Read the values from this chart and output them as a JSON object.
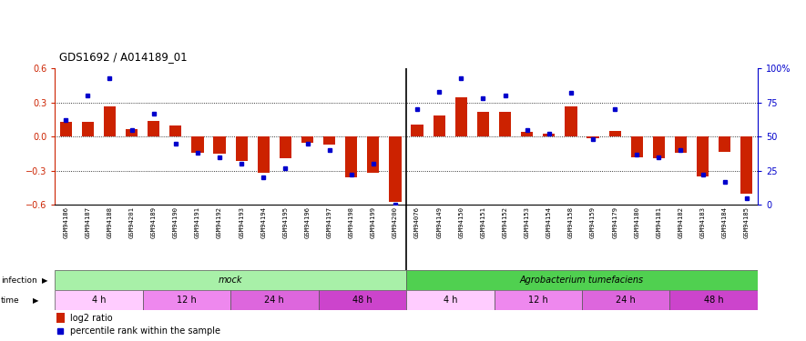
{
  "title": "GDS1692 / A014189_01",
  "samples": [
    "GSM94186",
    "GSM94187",
    "GSM94188",
    "GSM94201",
    "GSM94189",
    "GSM94190",
    "GSM94191",
    "GSM94192",
    "GSM94193",
    "GSM94194",
    "GSM94195",
    "GSM94196",
    "GSM94197",
    "GSM94198",
    "GSM94199",
    "GSM94200",
    "GSM94076",
    "GSM94149",
    "GSM94150",
    "GSM94151",
    "GSM94152",
    "GSM94153",
    "GSM94154",
    "GSM94158",
    "GSM94159",
    "GSM94179",
    "GSM94180",
    "GSM94181",
    "GSM94182",
    "GSM94183",
    "GSM94184",
    "GSM94185"
  ],
  "log2_ratio": [
    0.13,
    0.13,
    0.27,
    0.07,
    0.14,
    0.1,
    -0.14,
    -0.15,
    -0.21,
    -0.32,
    -0.19,
    -0.05,
    -0.07,
    -0.36,
    -0.32,
    -0.57,
    0.11,
    0.19,
    0.35,
    0.22,
    0.22,
    0.04,
    0.03,
    0.27,
    -0.01,
    0.05,
    -0.18,
    -0.19,
    -0.14,
    -0.35,
    -0.13,
    -0.5
  ],
  "percentile": [
    62,
    80,
    93,
    55,
    67,
    45,
    38,
    35,
    30,
    20,
    27,
    45,
    40,
    22,
    30,
    0,
    70,
    83,
    93,
    78,
    80,
    55,
    52,
    82,
    48,
    70,
    37,
    35,
    40,
    22,
    17,
    5
  ],
  "infection_groups": [
    {
      "label": "mock",
      "start": 0,
      "end": 16,
      "color": "#a8f0a8"
    },
    {
      "label": "Agrobacterium tumefaciens",
      "start": 16,
      "end": 32,
      "color": "#50d050"
    }
  ],
  "time_groups": [
    {
      "label": "4 h",
      "start": 0,
      "end": 4,
      "color": "#ffccff"
    },
    {
      "label": "12 h",
      "start": 4,
      "end": 8,
      "color": "#ee88ee"
    },
    {
      "label": "24 h",
      "start": 8,
      "end": 12,
      "color": "#dd66dd"
    },
    {
      "label": "48 h",
      "start": 12,
      "end": 16,
      "color": "#cc44cc"
    },
    {
      "label": "4 h",
      "start": 16,
      "end": 20,
      "color": "#ffccff"
    },
    {
      "label": "12 h",
      "start": 20,
      "end": 24,
      "color": "#ee88ee"
    },
    {
      "label": "24 h",
      "start": 24,
      "end": 28,
      "color": "#dd66dd"
    },
    {
      "label": "48 h",
      "start": 28,
      "end": 32,
      "color": "#cc44cc"
    }
  ],
  "bar_color": "#cc2200",
  "dot_color": "#0000cc",
  "ylim_left": [
    -0.6,
    0.6
  ],
  "ylim_right": [
    0,
    100
  ],
  "yticks_left": [
    -0.6,
    -0.3,
    0.0,
    0.3,
    0.6
  ],
  "yticks_right": [
    0,
    25,
    50,
    75,
    100
  ],
  "ytick_labels_right": [
    "0",
    "25",
    "50",
    "75",
    "100%"
  ],
  "hlines": [
    0.3,
    0.0,
    -0.3
  ],
  "bg_color": "#ffffff",
  "xlabel_bg": "#c8c8c8"
}
